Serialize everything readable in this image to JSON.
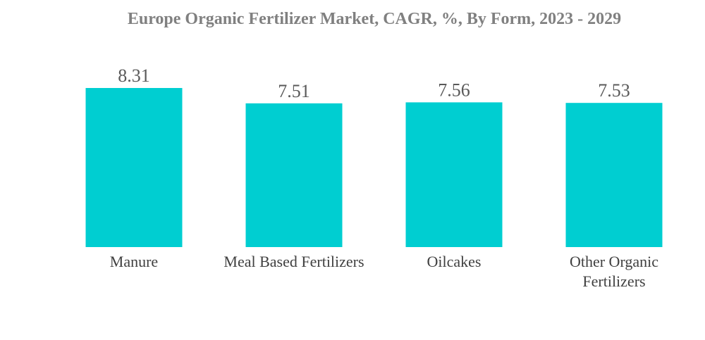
{
  "chart_data": {
    "type": "bar",
    "title": "Europe Organic Fertilizer Market, CAGR, %, By Form, 2023 - 2029",
    "categories": [
      [
        "Manure"
      ],
      [
        "Meal Based Fertilizers"
      ],
      [
        "Oilcakes"
      ],
      [
        "Other Organic",
        "Fertilizers"
      ]
    ],
    "values": [
      8.31,
      7.51,
      7.56,
      7.53
    ],
    "xlabel": "",
    "ylabel": "",
    "ylim": [
      0,
      8.31
    ],
    "grid": false,
    "legend": "none",
    "bar_color": "#00CED1"
  }
}
